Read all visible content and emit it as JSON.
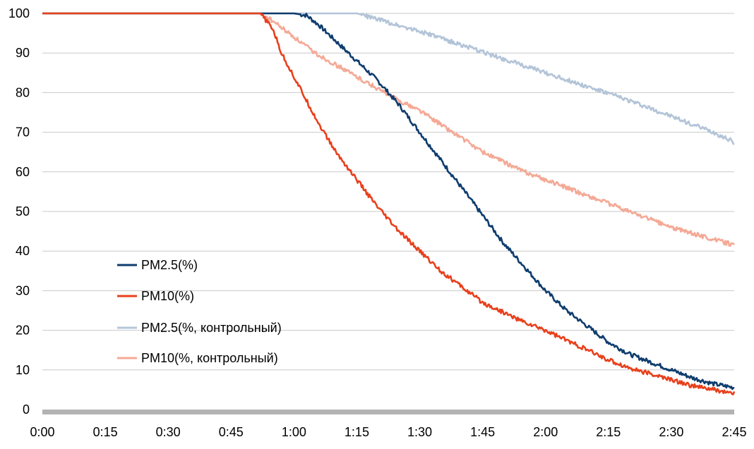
{
  "chart_data": {
    "type": "line",
    "title": "",
    "xlabel": "",
    "ylabel": "",
    "x_ticks": [
      "0:00",
      "0:15",
      "0:30",
      "0:45",
      "1:00",
      "1:15",
      "1:30",
      "1:45",
      "2:00",
      "2:15",
      "2:30",
      "2:45"
    ],
    "x_range_minutes": [
      0,
      165
    ],
    "ylim": [
      0,
      100
    ],
    "y_ticks": [
      0,
      10,
      20,
      30,
      40,
      50,
      60,
      70,
      80,
      90,
      100
    ],
    "grid": true,
    "legend_position": "left",
    "series": [
      {
        "name": "PM2.5(%)",
        "color": "#0f3d6e",
        "points": [
          [
            0,
            100
          ],
          [
            15,
            100
          ],
          [
            30,
            100
          ],
          [
            45,
            100
          ],
          [
            60,
            100
          ],
          [
            63,
            99.5
          ],
          [
            66,
            97
          ],
          [
            70,
            93
          ],
          [
            75,
            88
          ],
          [
            80,
            83
          ],
          [
            85,
            77
          ],
          [
            90,
            70
          ],
          [
            95,
            63
          ],
          [
            100,
            56
          ],
          [
            105,
            49
          ],
          [
            110,
            42
          ],
          [
            115,
            36
          ],
          [
            120,
            30
          ],
          [
            125,
            25
          ],
          [
            130,
            21
          ],
          [
            135,
            17
          ],
          [
            140,
            14
          ],
          [
            145,
            12
          ],
          [
            150,
            10
          ],
          [
            155,
            8
          ],
          [
            160,
            6.5
          ],
          [
            165,
            5.5
          ]
        ]
      },
      {
        "name": "PM10(%)",
        "color": "#e8401c",
        "points": [
          [
            0,
            100
          ],
          [
            15,
            100
          ],
          [
            30,
            100
          ],
          [
            45,
            100
          ],
          [
            52,
            100
          ],
          [
            55,
            96
          ],
          [
            57,
            90
          ],
          [
            60,
            84
          ],
          [
            63,
            78
          ],
          [
            66,
            72
          ],
          [
            70,
            65
          ],
          [
            75,
            58
          ],
          [
            80,
            51
          ],
          [
            85,
            45
          ],
          [
            90,
            40
          ],
          [
            95,
            35
          ],
          [
            100,
            31
          ],
          [
            105,
            27
          ],
          [
            110,
            24.5
          ],
          [
            115,
            22
          ],
          [
            120,
            20
          ],
          [
            125,
            17.5
          ],
          [
            130,
            15
          ],
          [
            135,
            12.5
          ],
          [
            140,
            10.5
          ],
          [
            145,
            9
          ],
          [
            150,
            7.5
          ],
          [
            155,
            6
          ],
          [
            160,
            5
          ],
          [
            165,
            4
          ]
        ]
      },
      {
        "name": "PM2.5(%, контрольный)",
        "color": "#b3c4d8",
        "points": [
          [
            0,
            100
          ],
          [
            15,
            100
          ],
          [
            30,
            100
          ],
          [
            45,
            100
          ],
          [
            60,
            100
          ],
          [
            75,
            100
          ],
          [
            80,
            98.5
          ],
          [
            90,
            95.5
          ],
          [
            100,
            92
          ],
          [
            110,
            88.5
          ],
          [
            120,
            85
          ],
          [
            130,
            81.5
          ],
          [
            140,
            78
          ],
          [
            150,
            74
          ],
          [
            160,
            70
          ],
          [
            165,
            67.5
          ]
        ]
      },
      {
        "name": "PM10(%, контрольный)",
        "color": "#f4a996",
        "points": [
          [
            0,
            100
          ],
          [
            15,
            100
          ],
          [
            30,
            100
          ],
          [
            45,
            100
          ],
          [
            52,
            100
          ],
          [
            55,
            98
          ],
          [
            60,
            94
          ],
          [
            65,
            90
          ],
          [
            70,
            87
          ],
          [
            75,
            84
          ],
          [
            80,
            81
          ],
          [
            85,
            78
          ],
          [
            90,
            75.5
          ],
          [
            95,
            72
          ],
          [
            100,
            68.5
          ],
          [
            105,
            65
          ],
          [
            110,
            62.5
          ],
          [
            115,
            60
          ],
          [
            120,
            58
          ],
          [
            125,
            56
          ],
          [
            130,
            54
          ],
          [
            135,
            52
          ],
          [
            140,
            50
          ],
          [
            145,
            48
          ],
          [
            150,
            46
          ],
          [
            155,
            44.5
          ],
          [
            160,
            43
          ],
          [
            165,
            41.5
          ]
        ]
      }
    ]
  }
}
